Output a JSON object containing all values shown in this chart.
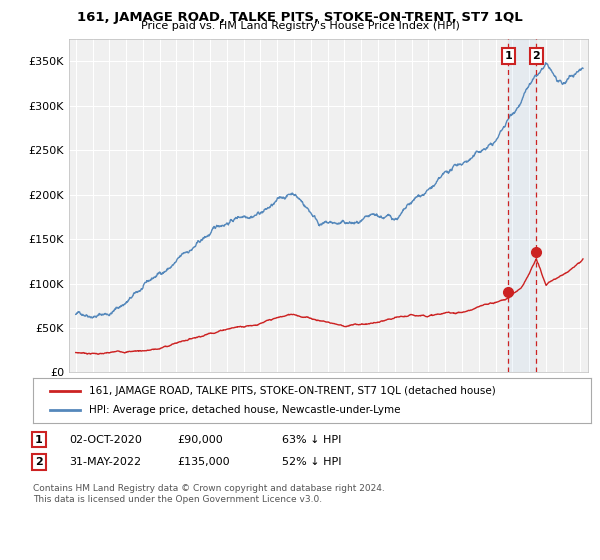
{
  "title": "161, JAMAGE ROAD, TALKE PITS, STOKE-ON-TRENT, ST7 1QL",
  "subtitle": "Price paid vs. HM Land Registry's House Price Index (HPI)",
  "ylabel_ticks": [
    "£0",
    "£50K",
    "£100K",
    "£150K",
    "£200K",
    "£250K",
    "£300K",
    "£350K"
  ],
  "ytick_values": [
    0,
    50000,
    100000,
    150000,
    200000,
    250000,
    300000,
    350000
  ],
  "ylim": [
    0,
    375000
  ],
  "xlim_start": 1994.6,
  "xlim_end": 2025.5,
  "hpi_color": "#5588bb",
  "price_color": "#cc2222",
  "marker1_date": 2020.75,
  "marker1_price": 90000,
  "marker2_date": 2022.42,
  "marker2_price": 135000,
  "legend_label1": "161, JAMAGE ROAD, TALKE PITS, STOKE-ON-TRENT, ST7 1QL (detached house)",
  "legend_label2": "HPI: Average price, detached house, Newcastle-under-Lyme",
  "ann1_date": "02-OCT-2020",
  "ann1_price": "£90,000",
  "ann1_pct": "63% ↓ HPI",
  "ann2_date": "31-MAY-2022",
  "ann2_price": "£135,000",
  "ann2_pct": "52% ↓ HPI",
  "footnote": "Contains HM Land Registry data © Crown copyright and database right 2024.\nThis data is licensed under the Open Government Licence v3.0.",
  "bg_color": "#ffffff",
  "plot_bg_color": "#f0f0f0"
}
